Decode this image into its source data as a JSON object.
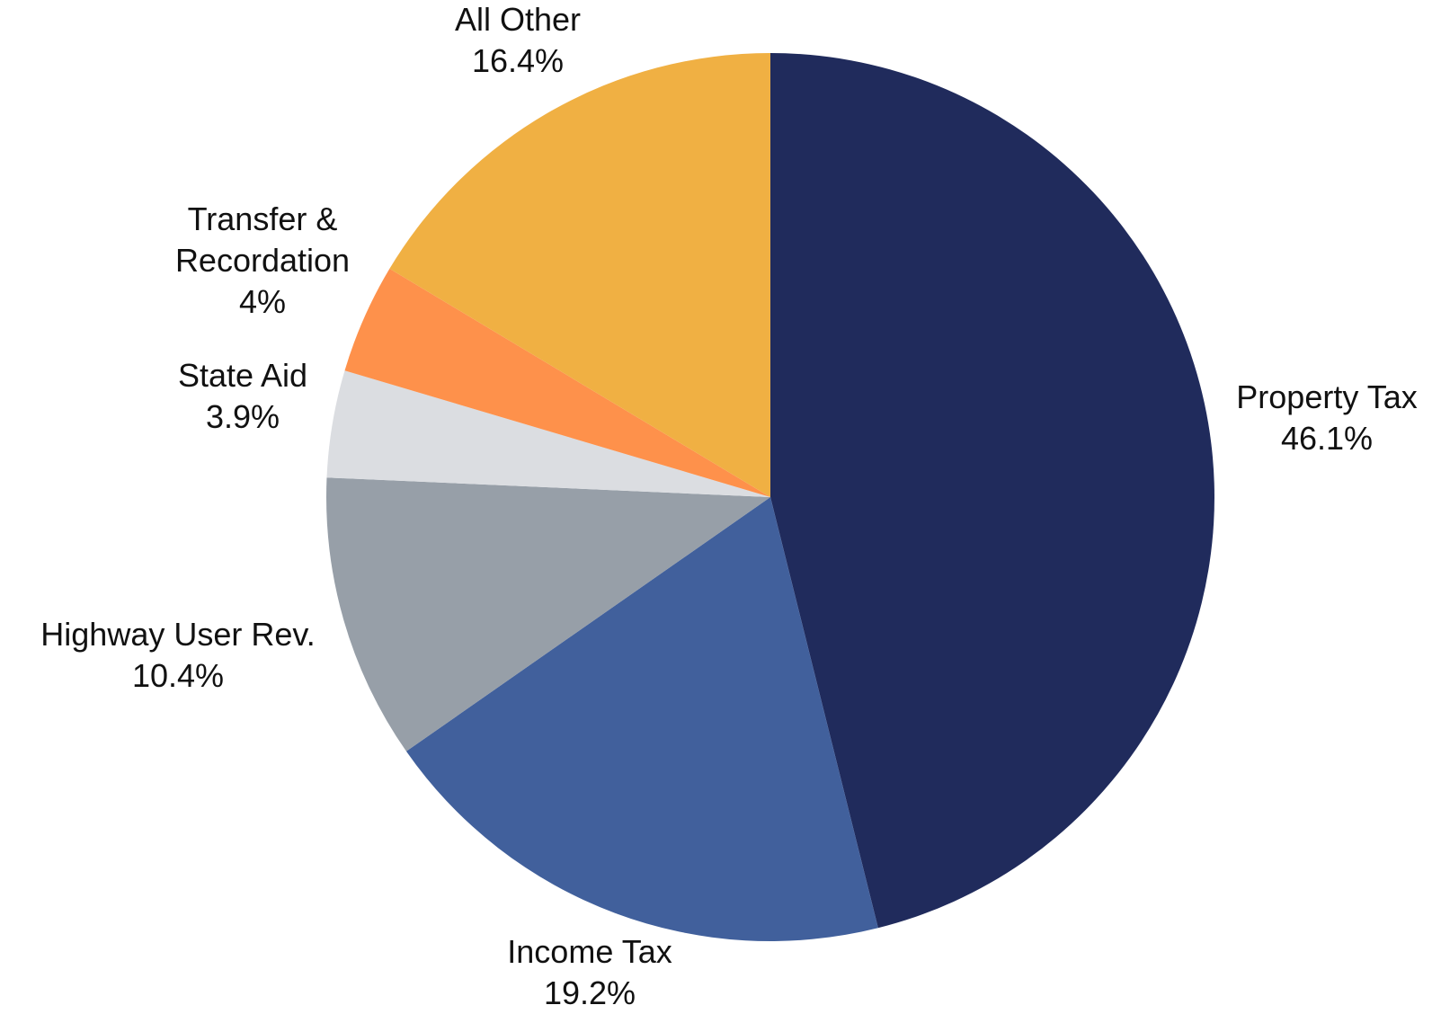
{
  "chart_data": {
    "type": "pie",
    "title": "",
    "start": "top",
    "direction": "clockwise",
    "slices": [
      {
        "label": "Property Tax",
        "label_lines": [
          "Property Tax"
        ],
        "value": 46.1,
        "value_text": "46.1%",
        "color": "#202b5c"
      },
      {
        "label": "Income Tax",
        "label_lines": [
          "Income Tax"
        ],
        "value": 19.2,
        "value_text": "19.2%",
        "color": "#41609c"
      },
      {
        "label": "Highway User Rev.",
        "label_lines": [
          "Highway User Rev."
        ],
        "value": 10.4,
        "value_text": "10.4%",
        "color": "#979fa8"
      },
      {
        "label": "State Aid",
        "label_lines": [
          "State Aid"
        ],
        "value": 3.9,
        "value_text": "3.9%",
        "color": "#dbdde1"
      },
      {
        "label": "Transfer & Recordation",
        "label_lines": [
          "Transfer &",
          "Recordation"
        ],
        "value": 4.0,
        "value_text": "4%",
        "color": "#fe914b"
      },
      {
        "label": "All Other",
        "label_lines": [
          "All Other"
        ],
        "value": 16.4,
        "value_text": "16.4%",
        "color": "#f0b043"
      }
    ]
  }
}
